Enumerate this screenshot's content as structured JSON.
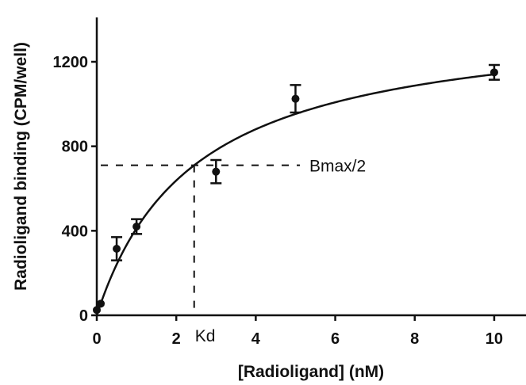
{
  "chart_data": {
    "type": "scatter",
    "xlabel": "[Radioligand] (nM)",
    "ylabel": "Radioligand binding (CPM/well)",
    "x_ticks": [
      "0",
      "2",
      "4",
      "6",
      "8",
      "10"
    ],
    "y_ticks": [
      "0",
      "400",
      "800",
      "1200"
    ],
    "xlim": [
      0,
      10.8
    ],
    "ylim": [
      0,
      1410
    ],
    "grid": false,
    "series": [
      {
        "x": [
          0.0,
          0.1,
          0.5,
          1.0,
          3.0,
          5.0,
          10.0
        ],
        "y": [
          25,
          55,
          315,
          420,
          680,
          1025,
          1150
        ],
        "error": [
          0,
          0,
          55,
          35,
          55,
          65,
          35
        ]
      }
    ],
    "fit": {
      "model": "one-site specific binding",
      "Bmax": 1420,
      "Kd": 2.45
    },
    "annotations": {
      "bmax_half": {
        "label": "Bmax/2",
        "y": 710
      },
      "kd": {
        "label": "Kd",
        "x": 2.45
      }
    },
    "colors": {
      "ink": "#111111"
    }
  }
}
